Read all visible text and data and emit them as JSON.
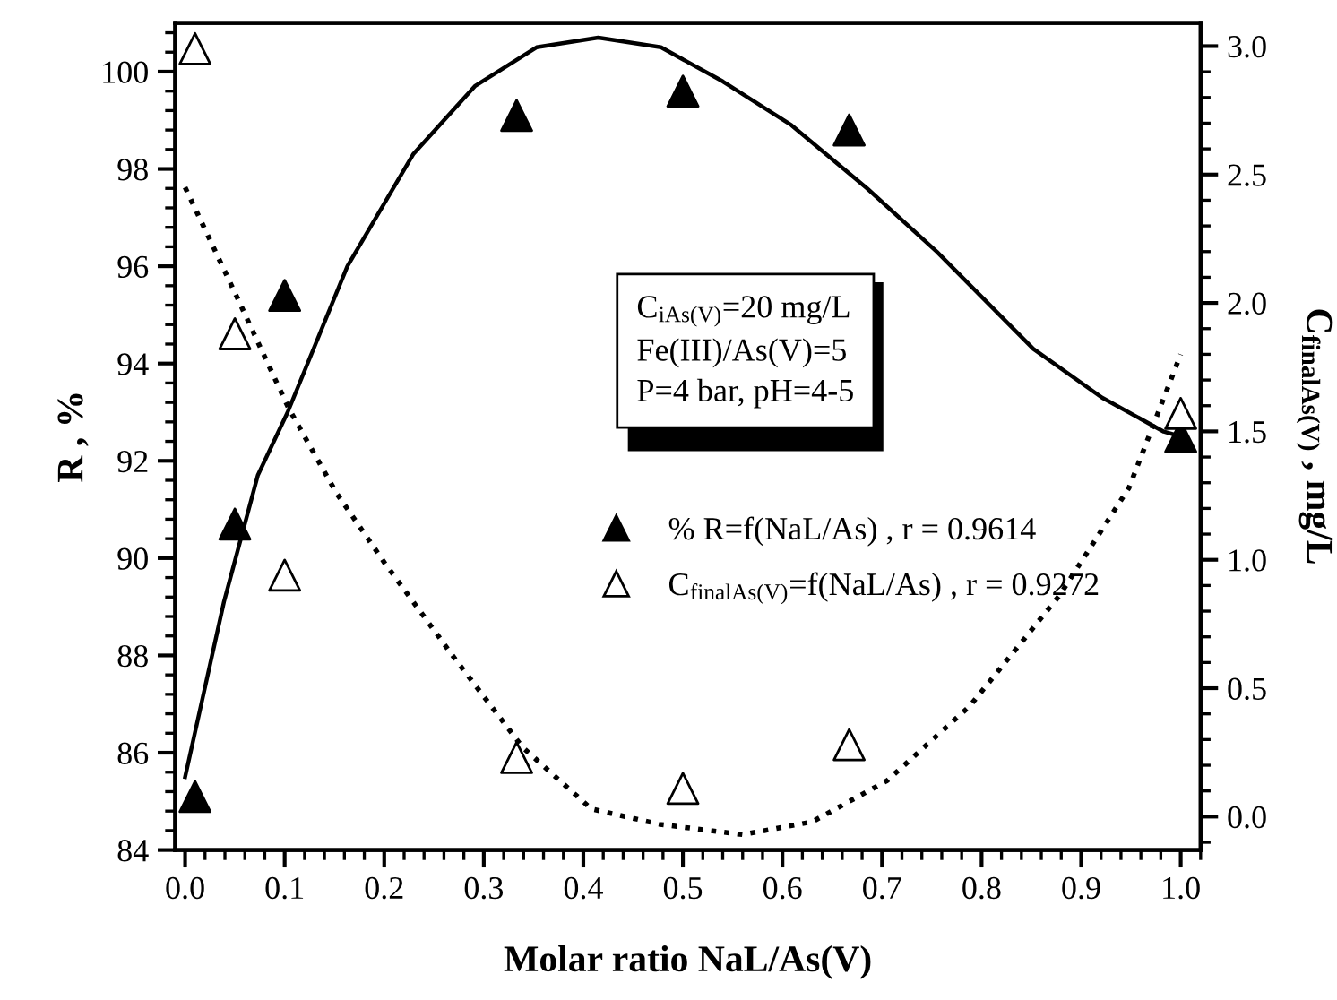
{
  "chart_data": {
    "type": "scatter",
    "xlabel": "Molar ratio NaL/As(V)",
    "ylabel": "R , %",
    "y2label": "C$_{finalAs(V)}$ , mg/L",
    "xlim": [
      -0.01,
      1.02
    ],
    "xticks": [
      {
        "value": 0,
        "label": "0.0"
      },
      0.1,
      0.2,
      0.3,
      0.4,
      0.5,
      0.6,
      0.7,
      0.8,
      0.9,
      {
        "value": 1,
        "label": "1.0"
      }
    ],
    "ylim": [
      84,
      101
    ],
    "yticks": [
      84,
      86,
      88,
      90,
      92,
      94,
      96,
      98,
      100
    ],
    "y2lim": [
      -0.13,
      3.09
    ],
    "y2ticks": [
      {
        "value": 0,
        "label": "0.0"
      },
      0.5,
      {
        "value": 1,
        "label": "1.0"
      },
      1.5,
      {
        "value": 2,
        "label": "2.0"
      },
      2.5,
      {
        "value": 3,
        "label": "3.0"
      }
    ],
    "grid": false,
    "legend": "center right",
    "annotations": [
      "C$_{iAs(V)}$=20 mg/L\nFe(III)/As(V)=5\nP=4 bar, pH=4-5"
    ],
    "series": [
      {
        "name": "% R=f(NaL/As) , r = 0.9614",
        "marker": "triangle",
        "color": "#000000",
        "x": [
          0.01,
          0.05,
          0.1,
          0.333,
          0.5,
          0.667,
          1.0
        ],
        "values": [
          85.1,
          90.7,
          95.4,
          99.1,
          99.6,
          98.8,
          92.5
        ]
      },
      {
        "name": "C$_{finalAs(V)}$=f(NaL/As) , r = 0.9272",
        "marker": "triangle",
        "axis": "y2",
        "color": "#ffffff",
        "x": [
          0.01,
          0.05,
          0.1,
          0.333,
          0.5,
          0.667,
          1.0
        ],
        "values": [
          2.99,
          1.88,
          0.94,
          0.23,
          0.11,
          0.28,
          1.57
        ]
      },
      {
        "type": "line",
        "color": "#000000",
        "line_style": "solid",
        "x": [
          0.0,
          0.039,
          0.073,
          0.103,
          0.163,
          0.229,
          0.291,
          0.353,
          0.415,
          0.478,
          0.54,
          0.609,
          0.685,
          0.755,
          0.852,
          0.921,
          0.983,
          1.0
        ],
        "values": [
          85.5,
          89.1,
          91.7,
          93.0,
          96.0,
          98.3,
          99.7,
          100.5,
          100.7,
          100.5,
          99.8,
          98.9,
          97.6,
          96.3,
          94.3,
          93.3,
          92.6,
          92.5
        ]
      },
      {
        "type": "line",
        "axis": "y2",
        "color": "#000000",
        "line_style": "dotted",
        "x": [
          0.0,
          0.05,
          0.104,
          0.152,
          0.2,
          0.27,
          0.339,
          0.408,
          0.477,
          0.56,
          0.63,
          0.705,
          0.788,
          0.878,
          0.948,
          1.0
        ],
        "values": [
          2.45,
          2.04,
          1.59,
          1.26,
          0.99,
          0.62,
          0.27,
          0.03,
          -0.03,
          -0.07,
          -0.02,
          0.14,
          0.43,
          0.86,
          1.28,
          1.8
        ]
      }
    ]
  }
}
